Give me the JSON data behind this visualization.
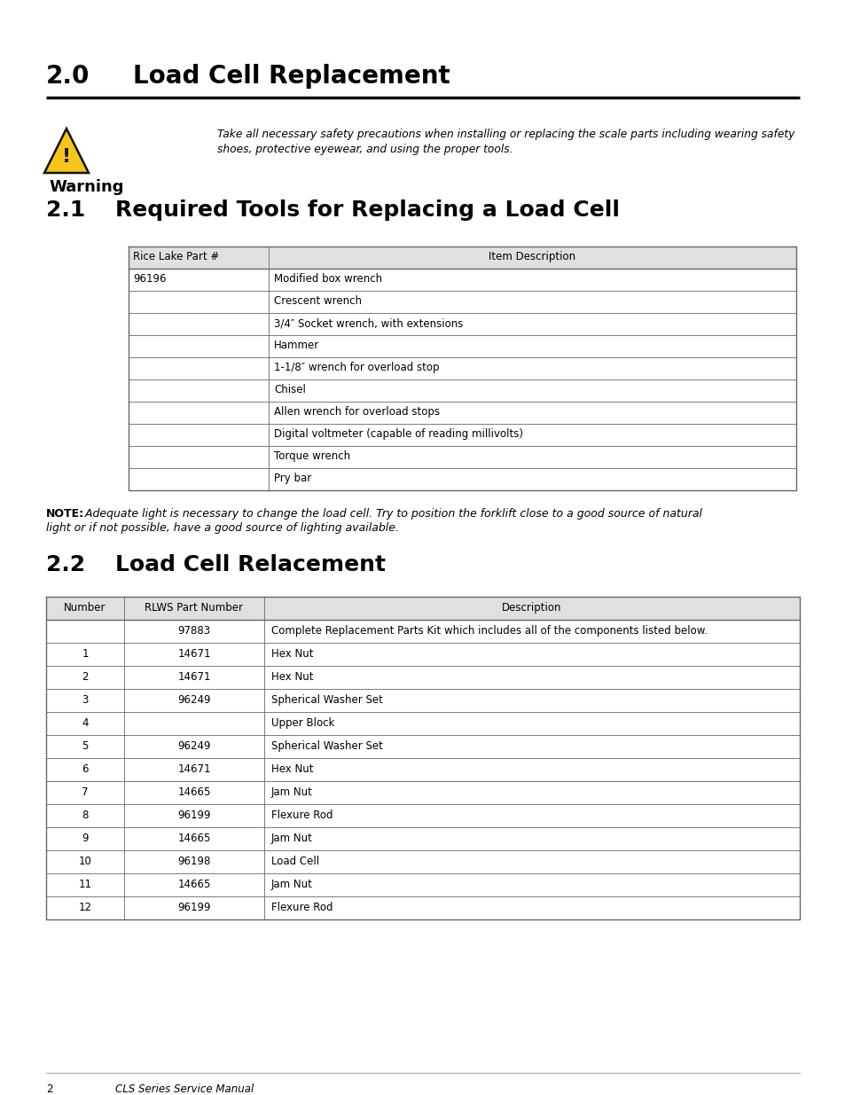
{
  "page_bg": "#ffffff",
  "text_color": "#000000",
  "table_header_bg": "#e0e0e0",
  "table_border_color": "#666666",
  "title_number": "2.0",
  "title_text": "Load Cell Replacement",
  "warning_line1": "Take all necessary safety precautions when installing or replacing the scale parts including wearing safety",
  "warning_line2": "shoes, protective eyewear, and using the proper tools.",
  "section21_num": "2.1",
  "section21_text": "Required Tools for Replacing a Load Cell",
  "table1_header": [
    "Rice Lake Part #",
    "Item Description"
  ],
  "table1_rows": [
    [
      "96196",
      "Modified box wrench"
    ],
    [
      "",
      "Crescent wrench"
    ],
    [
      "",
      "3/4″ Socket wrench, with extensions"
    ],
    [
      "",
      "Hammer"
    ],
    [
      "",
      "1-1/8″ wrench for overload stop"
    ],
    [
      "",
      "Chisel"
    ],
    [
      "",
      "Allen wrench for overload stops"
    ],
    [
      "",
      "Digital voltmeter (capable of reading millivolts)"
    ],
    [
      "",
      "Torque wrench"
    ],
    [
      "",
      "Pry bar"
    ]
  ],
  "note_bold": "NOTE:",
  "note_italic_line1": " Adequate light is necessary to change the load cell. Try to position the forklift close to a good source of natural",
  "note_italic_line2": "light or if not possible, have a good source of lighting available.",
  "section22_num": "2.2",
  "section22_text": "Load Cell Relacement",
  "table2_header": [
    "Number",
    "RLWS Part Number",
    "Description"
  ],
  "table2_rows": [
    [
      "",
      "97883",
      "Complete Replacement Parts Kit which includes all of the components listed below."
    ],
    [
      "1",
      "14671",
      "Hex Nut"
    ],
    [
      "2",
      "14671",
      "Hex Nut"
    ],
    [
      "3",
      "96249",
      "Spherical Washer Set"
    ],
    [
      "4",
      "",
      "Upper Block"
    ],
    [
      "5",
      "96249",
      "Spherical Washer Set"
    ],
    [
      "6",
      "14671",
      "Hex Nut"
    ],
    [
      "7",
      "14665",
      "Jam Nut"
    ],
    [
      "8",
      "96199",
      "Flexure Rod"
    ],
    [
      "9",
      "14665",
      "Jam Nut"
    ],
    [
      "10",
      "96198",
      "Load Cell"
    ],
    [
      "11",
      "14665",
      "Jam Nut"
    ],
    [
      "12",
      "96199",
      "Flexure Rod"
    ]
  ],
  "footer_page": "2",
  "footer_text": "CLS Series Service Manual"
}
